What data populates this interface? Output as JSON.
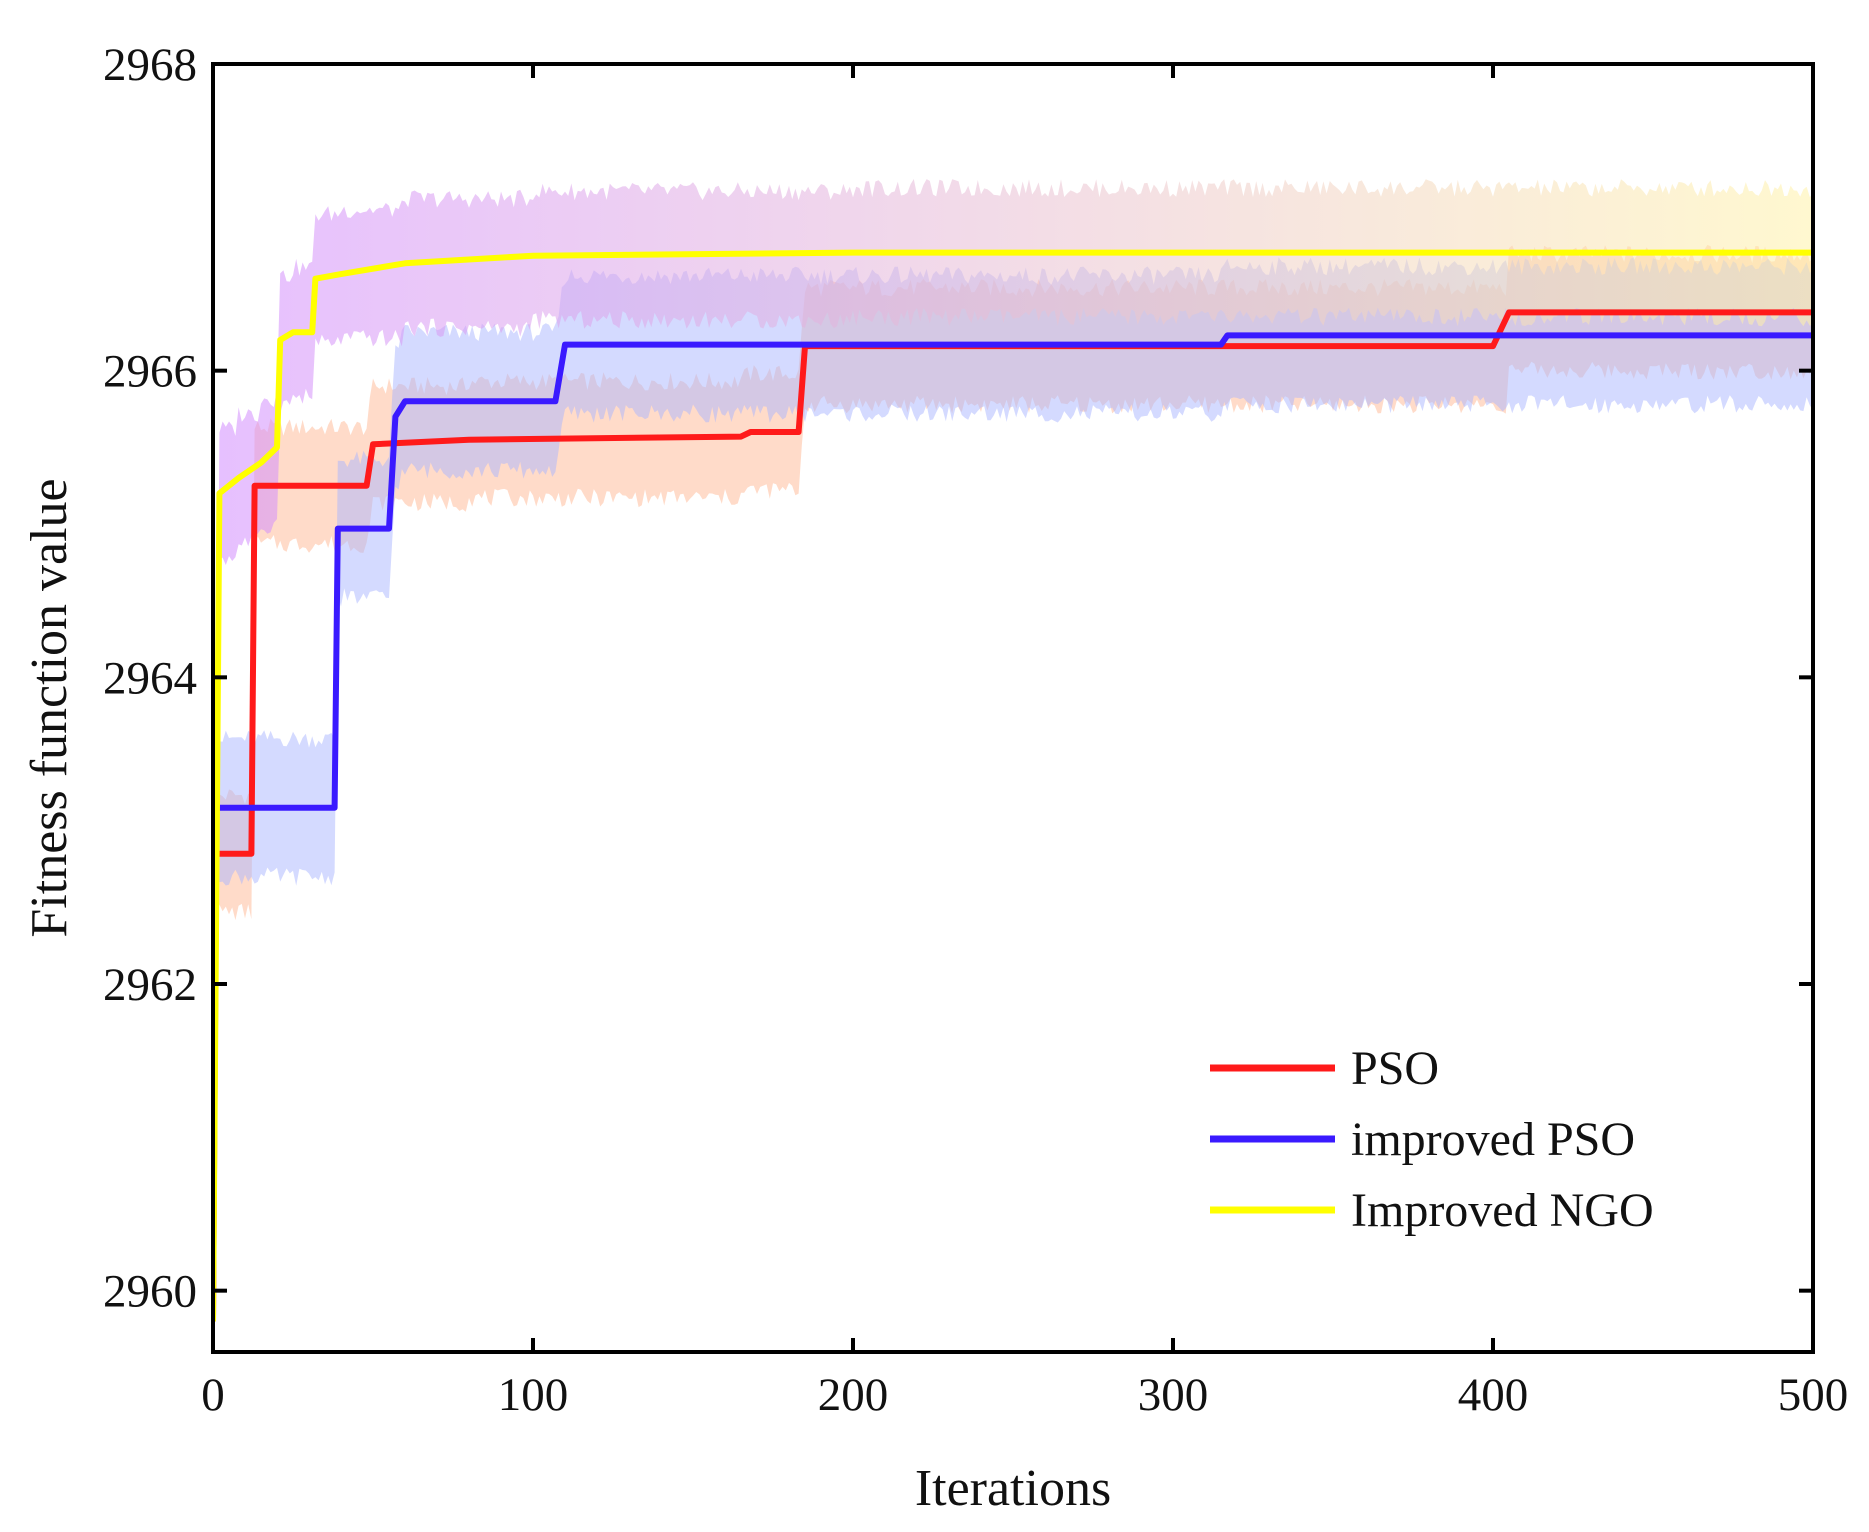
{
  "chart_data": {
    "type": "line",
    "title": "",
    "xlabel": "Iterations",
    "ylabel": "Fitness function value",
    "xlim": [
      0,
      500
    ],
    "ylim": [
      2959.6,
      2968
    ],
    "xticks": [
      0,
      100,
      200,
      300,
      400,
      500
    ],
    "xtick_labels": [
      "0",
      "100",
      "200",
      "300",
      "400",
      "500"
    ],
    "yticks": [
      2960,
      2962,
      2964,
      2966,
      2968
    ],
    "ytick_labels": [
      "2960",
      "2962",
      "2964",
      "2966",
      "2968"
    ],
    "grid": false,
    "legend_position": "bottom-right",
    "series": [
      {
        "name": "PSO",
        "color": "#ff1a1a",
        "band_color": "#ffb894",
        "band_halfwidth": 0.38,
        "points": [
          [
            0,
            2959.8
          ],
          [
            1,
            2962.85
          ],
          [
            12,
            2962.85
          ],
          [
            13,
            2965.25
          ],
          [
            48,
            2965.25
          ],
          [
            50,
            2965.52
          ],
          [
            80,
            2965.55
          ],
          [
            165,
            2965.57
          ],
          [
            168,
            2965.6
          ],
          [
            183,
            2965.6
          ],
          [
            185,
            2966.16
          ],
          [
            400,
            2966.16
          ],
          [
            405,
            2966.38
          ],
          [
            500,
            2966.38
          ]
        ]
      },
      {
        "name": "improved PSO",
        "color": "#3a1aff",
        "band_color": "#a9b5ff",
        "band_halfwidth": 0.45,
        "points": [
          [
            0,
            2963.15
          ],
          [
            38,
            2963.15
          ],
          [
            39,
            2964.97
          ],
          [
            55,
            2964.97
          ],
          [
            57,
            2965.7
          ],
          [
            60,
            2965.8
          ],
          [
            107,
            2965.8
          ],
          [
            110,
            2966.17
          ],
          [
            315,
            2966.17
          ],
          [
            317,
            2966.23
          ],
          [
            500,
            2966.23
          ]
        ]
      },
      {
        "name": "Improved NGO",
        "color": "#ffff00",
        "band_color": "#d28cff",
        "band_end_color": "#fff2a8",
        "band_halfwidth": 0.42,
        "points": [
          [
            0,
            2959.8
          ],
          [
            2,
            2965.2
          ],
          [
            8,
            2965.3
          ],
          [
            15,
            2965.4
          ],
          [
            20,
            2965.5
          ],
          [
            21,
            2966.2
          ],
          [
            25,
            2966.25
          ],
          [
            31,
            2966.25
          ],
          [
            32,
            2966.6
          ],
          [
            40,
            2966.63
          ],
          [
            60,
            2966.7
          ],
          [
            100,
            2966.75
          ],
          [
            200,
            2966.77
          ],
          [
            500,
            2966.77
          ]
        ]
      }
    ]
  }
}
